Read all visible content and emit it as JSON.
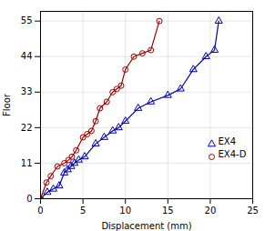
{
  "chart_data": {
    "type": "line",
    "xlabel": "Displacement (mm)",
    "ylabel": "Floor",
    "series": [
      {
        "name": "EX4",
        "color": "#0000bb",
        "marker": "triangle",
        "x": [
          0,
          0.8,
          1.5,
          2.2,
          2.8,
          3.2,
          3.6,
          4.0,
          4.5,
          5.2,
          6.5,
          7.5,
          8.5,
          9.2,
          10.0,
          11.5,
          13.0,
          15.0,
          16.5,
          18.0,
          19.5,
          20.5,
          21.0
        ],
        "values": [
          0,
          2,
          3,
          4,
          8,
          9,
          10,
          11,
          12,
          13,
          17,
          19,
          21,
          22,
          24,
          28,
          30,
          32,
          34,
          40,
          44,
          46,
          55
        ]
      },
      {
        "name": "EX4-D",
        "color": "#990000",
        "marker": "circle",
        "x": [
          0,
          0.7,
          1.2,
          2.0,
          2.8,
          3.3,
          3.7,
          4.2,
          5.0,
          5.5,
          6.0,
          6.5,
          7.0,
          7.8,
          8.5,
          9.0,
          9.5,
          10.0,
          11.0,
          12.0,
          13.0,
          14.0
        ],
        "values": [
          0,
          5,
          7,
          10,
          11,
          12,
          13,
          15,
          19,
          20,
          21,
          24,
          28,
          30,
          33,
          34,
          35,
          40,
          44,
          45,
          46,
          55
        ]
      }
    ],
    "xlim": [
      0,
      25
    ],
    "ylim": [
      0,
      58
    ],
    "xticks": [
      0,
      5,
      10,
      15,
      20,
      25
    ],
    "yticks": [
      0,
      11,
      22,
      33,
      44,
      55
    ],
    "grid": true,
    "legend": "lower right"
  }
}
